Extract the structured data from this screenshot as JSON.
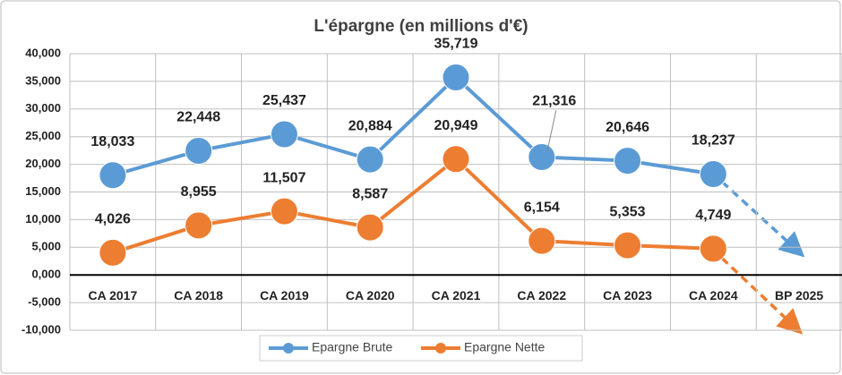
{
  "chart_data": {
    "type": "line",
    "title": "L'épargne (en millions d'€)",
    "categories": [
      "CA 2017",
      "CA 2018",
      "CA 2019",
      "CA 2020",
      "CA 2021",
      "CA 2022",
      "CA 2023",
      "CA 2024",
      "BP 2025"
    ],
    "series": [
      {
        "name": "Epargne Brute",
        "color": "#5b9bd5",
        "values": [
          18033,
          22448,
          25437,
          20884,
          35719,
          21316,
          20646,
          18237,
          null
        ],
        "value_labels": [
          "18,033",
          "22,448",
          "25,437",
          "20,884",
          "35,719",
          "21,316",
          "20,646",
          "18,237",
          null
        ]
      },
      {
        "name": "Epargne Nette",
        "color": "#ed7d31",
        "values": [
          4026,
          8955,
          11507,
          8587,
          20949,
          6154,
          5353,
          4749,
          null
        ],
        "value_labels": [
          "4,026",
          "8,955",
          "11,507",
          "8,587",
          "20,949",
          "6,154",
          "5,353",
          "4,749",
          null
        ]
      }
    ],
    "ylim": [
      -10000,
      40000
    ],
    "yticks": [
      {
        "value": -10000,
        "label": "-10,000"
      },
      {
        "value": -5000,
        "label": "-5,000"
      },
      {
        "value": 0,
        "label": "0,000"
      },
      {
        "value": 5000,
        "label": "5,000"
      },
      {
        "value": 10000,
        "label": "10,000"
      },
      {
        "value": 15000,
        "label": "15,000"
      },
      {
        "value": 20000,
        "label": "20,000"
      },
      {
        "value": 25000,
        "label": "25,000"
      },
      {
        "value": 30000,
        "label": "30,000"
      },
      {
        "value": 35000,
        "label": "35,000"
      },
      {
        "value": 40000,
        "label": "40,000"
      }
    ],
    "grid": true
  }
}
